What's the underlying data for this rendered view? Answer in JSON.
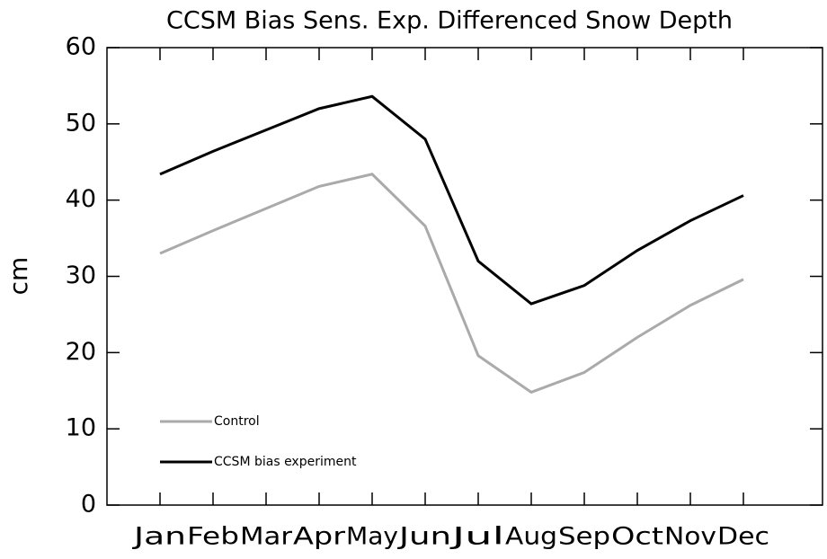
{
  "chart_data": {
    "type": "line",
    "title": "CCSM Bias Sens. Exp. Differenced Snow Depth",
    "y_label": "cm",
    "categories": [
      "Jan",
      "Feb",
      "Mar",
      "Apr",
      "May",
      "Jun",
      "Jul",
      "Aug",
      "Sep",
      "Oct",
      "Nov",
      "Dec"
    ],
    "series": [
      {
        "name": "Control",
        "color": "#aaaaaa",
        "values": [
          33,
          36,
          38.9,
          41.8,
          43.4,
          36.6,
          19.6,
          14.8,
          17.4,
          22,
          26.2,
          29.6
        ]
      },
      {
        "name": "CCSM bias experiment",
        "color": "#000000",
        "values": [
          43.4,
          46.4,
          49.2,
          52,
          53.6,
          48,
          32,
          26.4,
          28.8,
          33.4,
          37.3,
          40.6
        ]
      }
    ],
    "ylim": [
      0,
      60
    ],
    "yticks": [
      0,
      10,
      20,
      30,
      40,
      50,
      60
    ],
    "legend": "lower left"
  }
}
